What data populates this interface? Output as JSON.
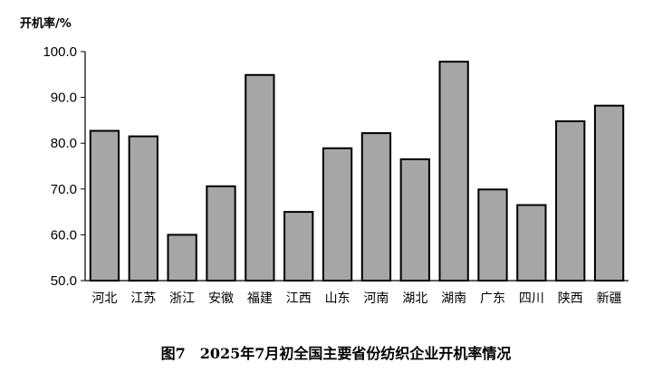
{
  "chart_data": {
    "type": "bar",
    "ylabel": "开机率/%",
    "caption": "图7　2025年7月初全国主要省份纺织企业开机率情况",
    "categories": [
      "河北",
      "江苏",
      "浙江",
      "安徽",
      "福建",
      "江西",
      "山东",
      "河南",
      "湖北",
      "湖南",
      "广东",
      "四川",
      "陕西",
      "新疆"
    ],
    "values": [
      82.7,
      81.5,
      60.0,
      70.6,
      94.9,
      65.0,
      78.9,
      82.2,
      76.5,
      97.8,
      69.9,
      66.5,
      84.8,
      88.2
    ],
    "ylim": [
      50,
      100
    ],
    "yticks": [
      "50.0",
      "60.0",
      "70.0",
      "80.0",
      "90.0",
      "100.0"
    ],
    "bar_color": "#a6a6a6",
    "edge_color": "#000000",
    "grid": false,
    "legend": "none"
  }
}
